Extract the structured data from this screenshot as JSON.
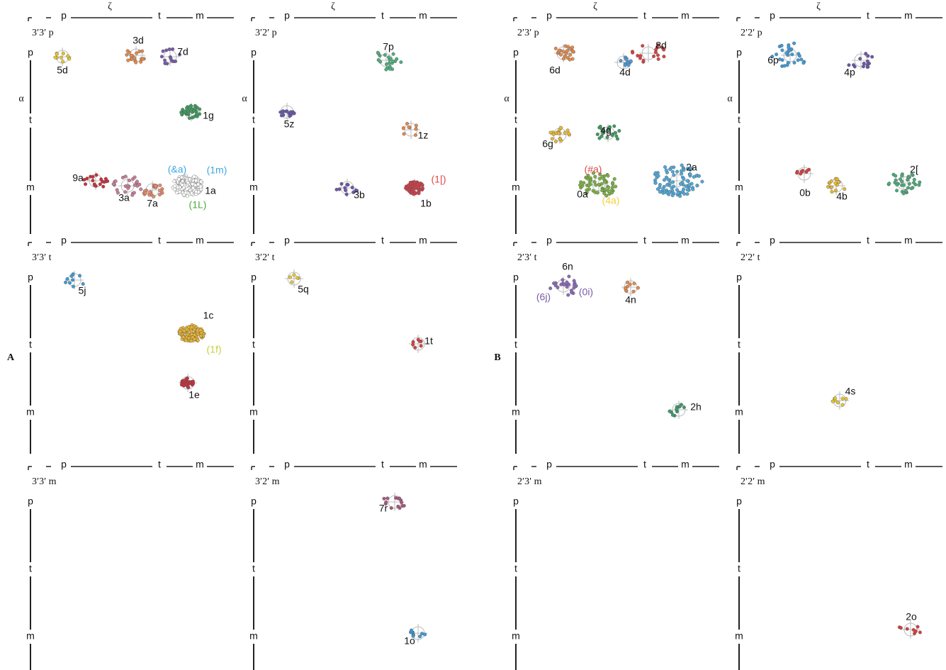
{
  "axis": {
    "top_symbol": "ζ",
    "left_symbol": "α",
    "ticks": [
      "p",
      "t",
      "m"
    ]
  },
  "groups": [
    {
      "label": "A",
      "panels": [
        {
          "title": "3′3′ p",
          "clusters": [
            {
              "label": "5d",
              "color": "#e6c62e"
            },
            {
              "label": "3d",
              "color": "#e38a4a"
            },
            {
              "label": "7d",
              "color": "#7a5aa8"
            },
            {
              "label": "1g",
              "color": "#3f9a5e"
            },
            {
              "label": "9a",
              "color": "#c8303a"
            },
            {
              "label": "3a",
              "color": "#c77d95"
            },
            {
              "label": "7a",
              "color": "#e58a6a"
            },
            {
              "label": "1a",
              "color": "#ffffff"
            }
          ],
          "annotations": [
            {
              "label": "(&a)",
              "color": "#3fa7e0"
            },
            {
              "label": "(1m)",
              "color": "#3fa7e0"
            },
            {
              "label": "(1L)",
              "color": "#4caa3c"
            }
          ]
        },
        {
          "title": "3′2′ p",
          "clusters": [
            {
              "label": "7p",
              "color": "#4fae7e"
            },
            {
              "label": "5z",
              "color": "#6a56a8"
            },
            {
              "label": "1z",
              "color": "#e38a4a"
            },
            {
              "label": "3b",
              "color": "#6a56a8"
            },
            {
              "label": "1b",
              "color": "#d0404a"
            }
          ],
          "annotations": [
            {
              "label": "(1[)",
              "color": "#e04848"
            }
          ]
        },
        {
          "title": "3′3′ t",
          "clusters": [
            {
              "label": "5j",
              "color": "#3f9ad8"
            },
            {
              "label": "1c",
              "color": "#e8b432"
            },
            {
              "label": "1e",
              "color": "#c8303a"
            }
          ],
          "annotations": [
            {
              "label": "(1f)",
              "color": "#c8d040"
            }
          ]
        },
        {
          "title": "3′2′ t",
          "clusters": [
            {
              "label": "5q",
              "color": "#e6c62e"
            },
            {
              "label": "1t",
              "color": "#d84040"
            }
          ],
          "annotations": []
        },
        {
          "title": "3′3′ m",
          "clusters": [],
          "annotations": []
        },
        {
          "title": "3′2′ m",
          "clusters": [
            {
              "label": "7r",
              "color": "#a8587e"
            },
            {
              "label": "1o",
              "color": "#3f9ad8"
            }
          ],
          "annotations": []
        }
      ]
    },
    {
      "label": "B",
      "panels": [
        {
          "title": "2′3′ p",
          "clusters": [
            {
              "label": "6d",
              "color": "#e38a4a"
            },
            {
              "label": "8d",
              "color": "#d84040"
            },
            {
              "label": "4d",
              "color": "#4f9ad8"
            },
            {
              "label": "6g",
              "color": "#e6b832"
            },
            {
              "label": "4g",
              "color": "#3f9a5e"
            },
            {
              "label": "2a",
              "color": "#4fa8d8"
            },
            {
              "label": "0a",
              "color": "#7ab040"
            }
          ],
          "annotations": [
            {
              "label": "(#a)",
              "color": "#e04848"
            },
            {
              "label": "(4a)",
              "color": "#f0d040"
            }
          ]
        },
        {
          "title": "2′2′ p",
          "clusters": [
            {
              "label": "6p",
              "color": "#3f9ad8"
            },
            {
              "label": "4p",
              "color": "#6a56a8"
            },
            {
              "label": "0b",
              "color": "#d84040"
            },
            {
              "label": "4b",
              "color": "#e6b832"
            },
            {
              "label": "2[",
              "color": "#4caa7a"
            }
          ],
          "annotations": []
        },
        {
          "title": "2′3′ t",
          "clusters": [
            {
              "label": "6n",
              "color": "#8a6ab8"
            },
            {
              "label": "4n",
              "color": "#e38a4a"
            },
            {
              "label": "2h",
              "color": "#3f9a6e"
            }
          ],
          "annotations": [
            {
              "label": "(6j)",
              "color": "#7a5aa8"
            },
            {
              "label": "(0i)",
              "color": "#7a5aa8"
            }
          ]
        },
        {
          "title": "2′2′ t",
          "clusters": [
            {
              "label": "4s",
              "color": "#e6c62e"
            }
          ],
          "annotations": []
        },
        {
          "title": "2′3′ m",
          "clusters": [],
          "annotations": []
        },
        {
          "title": "2′2′ m",
          "clusters": [
            {
              "label": "2o",
              "color": "#d84040"
            }
          ],
          "annotations": []
        }
      ]
    }
  ]
}
